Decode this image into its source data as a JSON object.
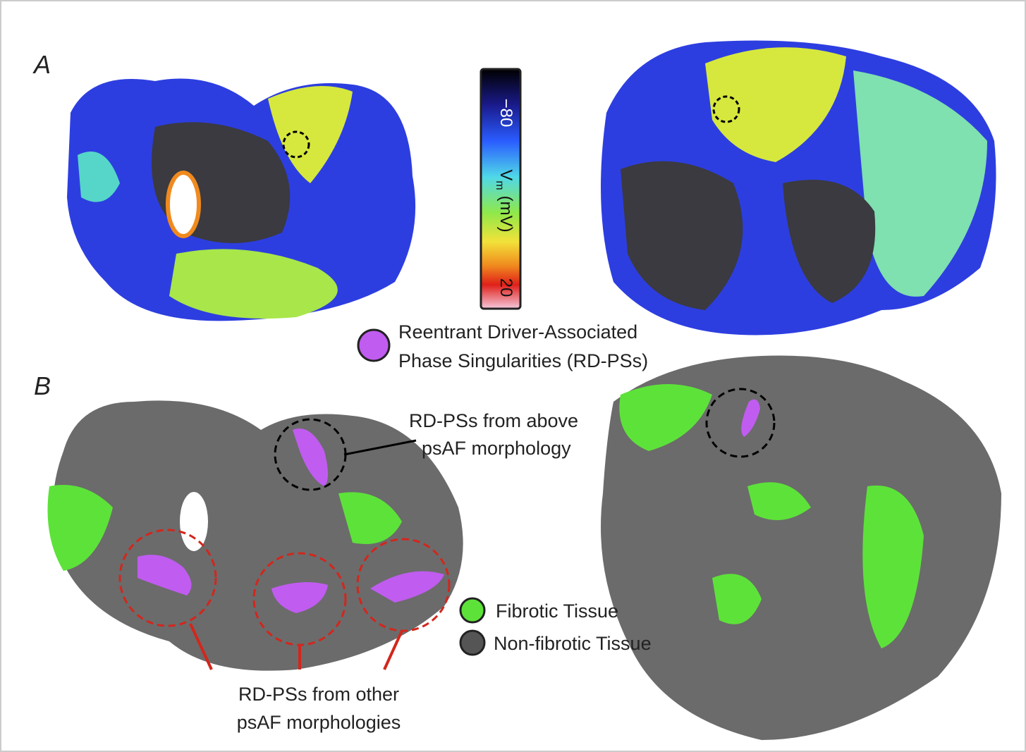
{
  "panels": {
    "a": "A",
    "b": "B"
  },
  "colorbar": {
    "top": "−80",
    "label_main": "V",
    "label_sub": "m",
    "label_unit": "(mV)",
    "bottom": "20"
  },
  "legend_a": {
    "lines": [
      "Reentrant Driver-Associated",
      "Phase Singularities (RD-PSs)"
    ]
  },
  "annotation_above": {
    "lines": [
      "RD-PSs from above",
      "psAF morphology"
    ]
  },
  "legend_b": {
    "items": [
      "Fibrotic Tissue",
      "Non-fibrotic Tissue"
    ]
  },
  "annotation_other": {
    "lines": [
      "RD-PSs from other",
      "psAF morphologies"
    ]
  }
}
